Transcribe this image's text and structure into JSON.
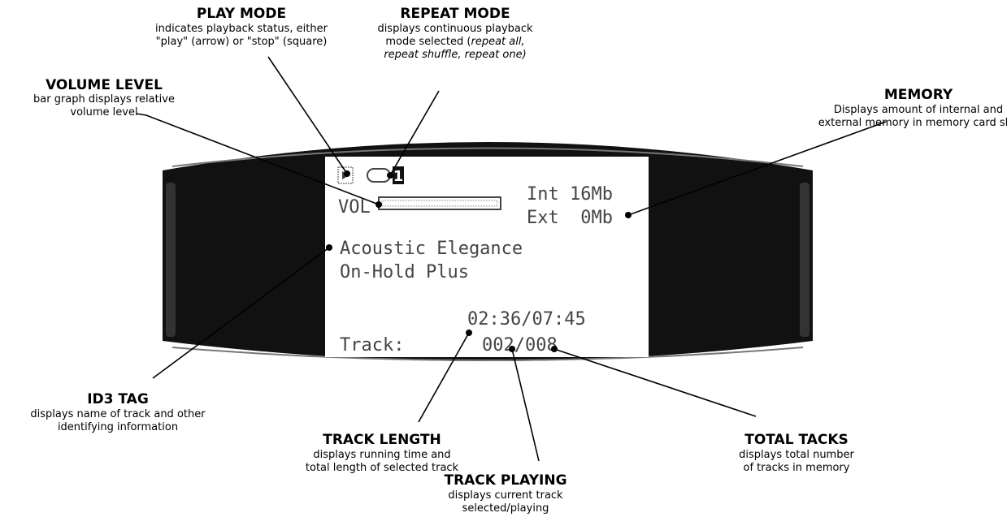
{
  "callouts": [
    {
      "title": "PLAY MODE",
      "description": [
        "indicates playback status, either",
        "\"play\" (arrow) or \"stop\" (square)"
      ]
    },
    {
      "title": "REPEAT MODE",
      "description": [
        "displays continuous playback",
        [
          "mode selected (",
          "repeat all,"
        ],
        "repeat shuffle, repeat one)"
      ]
    },
    {
      "title": "VOLUME LEVEL",
      "description": [
        "bar graph displays relative",
        "volume level"
      ]
    },
    {
      "title": "MEMORY",
      "description": [
        "Displays amount of internal and",
        "external memory in memory card slot"
      ]
    },
    {
      "title": "ID3 TAG",
      "description": [
        "displays name of track and other",
        "identifying information"
      ]
    },
    {
      "title": "TRACK LENGTH",
      "description": [
        "displays running time and",
        "total length of selected track"
      ]
    },
    {
      "title": "TRACK PLAYING",
      "description": [
        "displays current track",
        "selected/playing"
      ]
    },
    {
      "title": "TOTAL TACKS",
      "description": [
        "displays total number",
        "of tracks in memory"
      ]
    }
  ],
  "display": {
    "repeat_number": "1",
    "volume_label": "VOL",
    "memory_internal": "Int 16Mb",
    "memory_external": "Ext  0Mb",
    "track_name": "Acoustic Elegance",
    "artist": "On-Hold Plus",
    "time": "02:36/07:45",
    "track_label": "Track:",
    "track_count": "002/008"
  }
}
